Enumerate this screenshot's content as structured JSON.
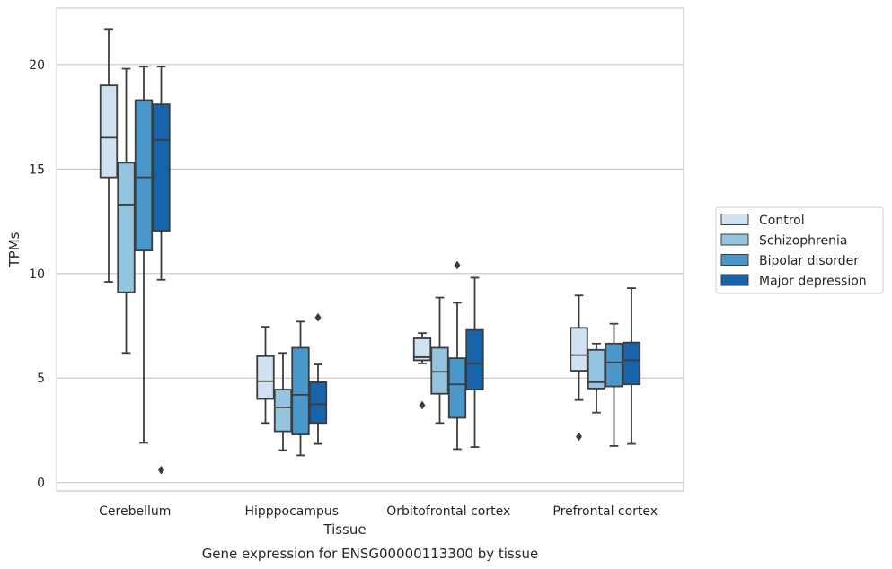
{
  "chart_data": {
    "type": "box",
    "xlabel": "Tissue",
    "ylabel": "TPMs",
    "caption": "Gene expression for ENSG00000113300 by tissue",
    "ylim": [
      -0.4,
      22.7
    ],
    "yticks": [
      0,
      5,
      10,
      15,
      20
    ],
    "grid": "horizontal",
    "legend_position": "right",
    "categories": [
      "Cerebellum",
      "Hipppocampus",
      "Orbitofrontal cortex",
      "Prefrontal cortex"
    ],
    "series": [
      {
        "name": "Control",
        "color": "#d0e1f2",
        "boxes": [
          {
            "whislo": 9.6,
            "q1": 14.6,
            "med": 16.5,
            "q3": 19.0,
            "whishi": 21.7,
            "fliers": []
          },
          {
            "whislo": 2.85,
            "q1": 4.0,
            "med": 4.85,
            "q3": 6.05,
            "whishi": 7.45,
            "fliers": []
          },
          {
            "whislo": 5.7,
            "q1": 5.85,
            "med": 6.0,
            "q3": 6.9,
            "whishi": 7.15,
            "fliers": [
              3.7
            ]
          },
          {
            "whislo": 3.95,
            "q1": 5.35,
            "med": 6.1,
            "q3": 7.4,
            "whishi": 8.95,
            "fliers": [
              2.2
            ]
          }
        ]
      },
      {
        "name": "Schizophrenia",
        "color": "#94c4df",
        "boxes": [
          {
            "whislo": 6.2,
            "q1": 9.1,
            "med": 13.3,
            "q3": 15.3,
            "whishi": 19.8,
            "fliers": []
          },
          {
            "whislo": 1.55,
            "q1": 2.45,
            "med": 3.6,
            "q3": 4.45,
            "whishi": 6.2,
            "fliers": []
          },
          {
            "whislo": 2.85,
            "q1": 4.25,
            "med": 5.3,
            "q3": 6.45,
            "whishi": 8.85,
            "fliers": []
          },
          {
            "whislo": 3.35,
            "q1": 4.5,
            "med": 4.8,
            "q3": 6.35,
            "whishi": 6.65,
            "fliers": []
          }
        ]
      },
      {
        "name": "Bipolar disorder",
        "color": "#4a98c9",
        "boxes": [
          {
            "whislo": 1.9,
            "q1": 11.1,
            "med": 14.6,
            "q3": 18.3,
            "whishi": 19.9,
            "fliers": []
          },
          {
            "whislo": 1.3,
            "q1": 2.3,
            "med": 4.2,
            "q3": 6.45,
            "whishi": 7.7,
            "fliers": []
          },
          {
            "whislo": 1.6,
            "q1": 3.1,
            "med": 4.7,
            "q3": 5.95,
            "whishi": 8.6,
            "fliers": [
              10.4
            ]
          },
          {
            "whislo": 1.75,
            "q1": 4.6,
            "med": 5.75,
            "q3": 6.65,
            "whishi": 7.6,
            "fliers": []
          }
        ]
      },
      {
        "name": "Major depression",
        "color": "#1764ab",
        "boxes": [
          {
            "whislo": 9.7,
            "q1": 12.05,
            "med": 16.4,
            "q3": 18.1,
            "whishi": 19.9,
            "fliers": [
              0.6
            ]
          },
          {
            "whislo": 1.85,
            "q1": 2.85,
            "med": 3.75,
            "q3": 4.8,
            "whishi": 5.65,
            "fliers": [
              7.9
            ]
          },
          {
            "whislo": 1.7,
            "q1": 4.45,
            "med": 5.7,
            "q3": 7.3,
            "whishi": 9.8,
            "fliers": []
          },
          {
            "whislo": 1.85,
            "q1": 4.7,
            "med": 5.85,
            "q3": 6.7,
            "whishi": 9.3,
            "fliers": []
          }
        ]
      }
    ]
  }
}
